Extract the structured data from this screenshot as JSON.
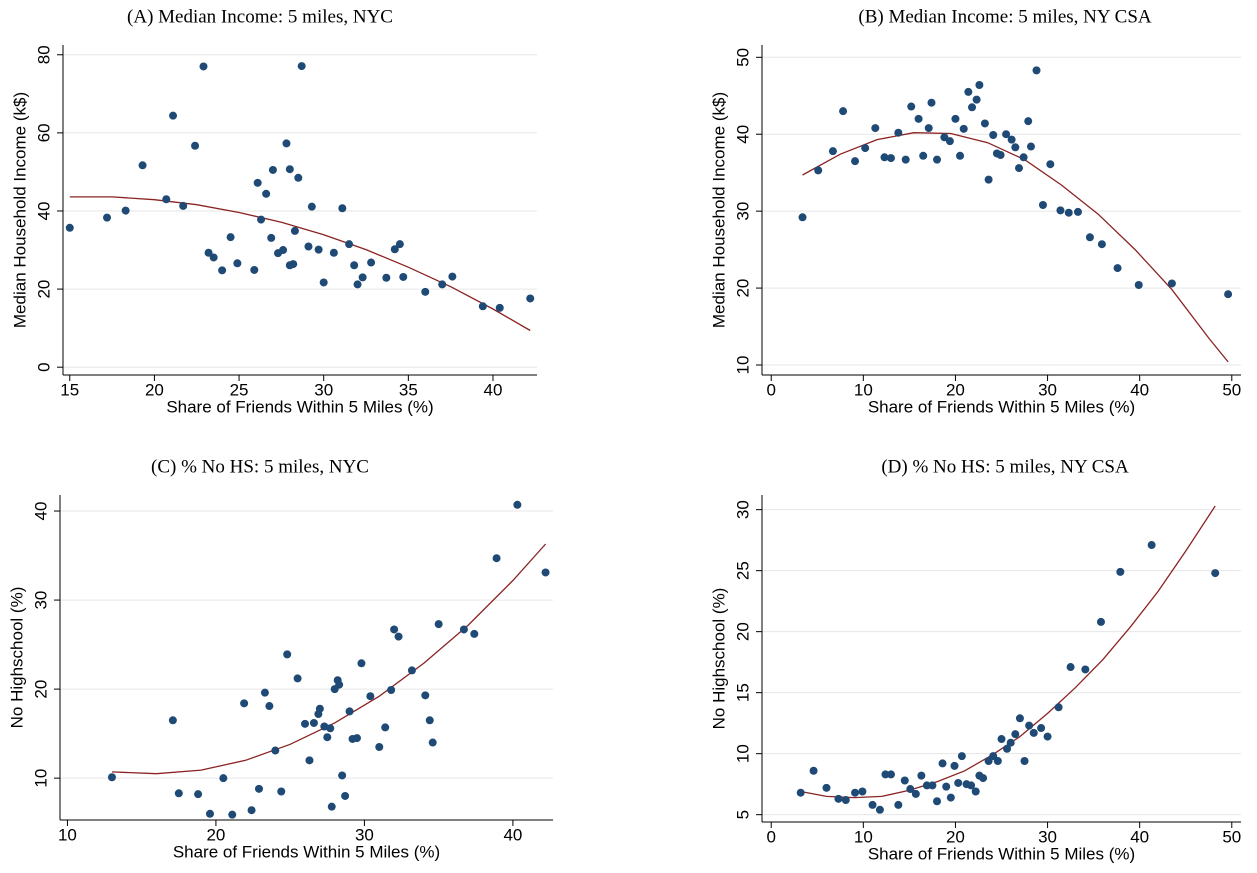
{
  "chart_data": [
    {
      "type": "scatter",
      "title": "(A)  Median Income: 5 miles, NYC",
      "xlabel": "Share of Friends Within 5 Miles (%)",
      "ylabel": "Median Household Income (k$)",
      "xlim": [
        14.6,
        42.6
      ],
      "ylim": [
        -2,
        82.5
      ],
      "xticks": [
        15,
        20,
        25,
        30,
        35,
        40
      ],
      "yticks": [
        0,
        20,
        40,
        60,
        80
      ],
      "grid": true,
      "color": "#1f4a75",
      "x": [
        15.0,
        17.2,
        18.3,
        19.3,
        20.7,
        21.1,
        21.7,
        22.4,
        22.9,
        23.2,
        23.5,
        24.0,
        24.5,
        24.9,
        25.9,
        26.1,
        26.3,
        26.6,
        26.9,
        27.0,
        27.3,
        27.6,
        27.8,
        28.0,
        28.0,
        28.2,
        28.3,
        28.5,
        28.7,
        29.1,
        29.3,
        29.7,
        30.0,
        30.6,
        31.1,
        31.5,
        31.8,
        32.0,
        32.3,
        32.8,
        33.7,
        34.2,
        34.5,
        34.7,
        36.0,
        37.0,
        37.6,
        39.4,
        40.4,
        42.2
      ],
      "values": [
        35.7,
        38.3,
        40.1,
        51.7,
        43.0,
        64.4,
        41.3,
        56.7,
        77.0,
        29.3,
        28.1,
        24.8,
        33.3,
        26.6,
        24.9,
        47.2,
        37.8,
        44.4,
        33.1,
        50.5,
        29.2,
        30.0,
        57.3,
        50.7,
        26.1,
        26.4,
        34.9,
        48.5,
        77.1,
        30.9,
        41.1,
        30.1,
        21.7,
        29.3,
        40.7,
        31.5,
        26.1,
        21.2,
        23.0,
        26.8,
        22.9,
        30.2,
        31.5,
        23.1,
        19.3,
        21.2,
        23.2,
        15.6,
        15.2,
        17.6
      ],
      "fit": {
        "color": "#8b2323",
        "x": [
          15,
          17.5,
          20,
          22.5,
          25,
          27.5,
          30,
          32.5,
          35,
          37.5,
          40,
          42.2
        ],
        "values": [
          43.6,
          43.6,
          42.9,
          41.6,
          39.6,
          37.1,
          33.9,
          30.1,
          25.6,
          20.6,
          14.9,
          9.4
        ]
      }
    },
    {
      "type": "scatter",
      "title": "(B)  Median Income: 5 miles, NY CSA",
      "xlabel": "Share of Friends Within 5 Miles (%)",
      "ylabel": "Median Household Income (k$)",
      "xlim": [
        -1,
        51
      ],
      "ylim": [
        8.7,
        51.6
      ],
      "xticks": [
        0,
        10,
        20,
        30,
        40,
        50
      ],
      "yticks": [
        10,
        20,
        30,
        40,
        50
      ],
      "grid": true,
      "color": "#1f4a75",
      "x": [
        3.4,
        5.1,
        6.7,
        7.8,
        9.1,
        10.2,
        11.3,
        12.3,
        13.0,
        13.8,
        14.6,
        15.2,
        16.0,
        16.5,
        17.1,
        17.4,
        18.0,
        18.8,
        19.4,
        20.0,
        20.5,
        20.9,
        21.4,
        21.8,
        22.3,
        22.6,
        23.2,
        23.6,
        24.1,
        24.5,
        24.9,
        25.5,
        26.1,
        26.5,
        26.9,
        27.4,
        27.9,
        28.2,
        28.8,
        29.5,
        30.3,
        31.4,
        32.3,
        33.3,
        34.6,
        35.9,
        37.6,
        39.9,
        43.5,
        49.6
      ],
      "values": [
        29.2,
        35.3,
        37.8,
        43.0,
        36.5,
        38.2,
        40.8,
        37.0,
        36.9,
        40.2,
        36.7,
        43.6,
        42.0,
        37.2,
        40.8,
        44.1,
        36.7,
        39.6,
        39.1,
        42.0,
        37.2,
        40.7,
        45.5,
        43.5,
        44.5,
        46.4,
        41.4,
        34.1,
        39.9,
        37.5,
        37.3,
        40.0,
        39.3,
        38.3,
        35.6,
        37.0,
        41.7,
        38.4,
        48.3,
        30.8,
        36.1,
        30.1,
        29.8,
        29.9,
        26.6,
        25.7,
        22.6,
        20.4,
        20.6,
        19.2
      ],
      "fit": {
        "color": "#8b2323",
        "x": [
          3.4,
          7.5,
          11.5,
          15.5,
          19.5,
          23.5,
          27.5,
          31.5,
          35.5,
          39.5,
          43.5,
          47.5,
          49.6
        ],
        "values": [
          34.7,
          37.4,
          39.3,
          40.2,
          40.1,
          38.9,
          36.7,
          33.4,
          29.6,
          25.0,
          19.8,
          13.5,
          10.4
        ]
      }
    },
    {
      "type": "scatter",
      "title": "(C)  % No HS: 5 miles, NYC",
      "xlabel": "Share of Friends Within 5 Miles (%)",
      "ylabel": "No Highschool (%)",
      "xlim": [
        9.5,
        42.7
      ],
      "ylim": [
        5.3,
        41.8
      ],
      "xticks": [
        10,
        20,
        30,
        40
      ],
      "yticks": [
        10,
        20,
        30,
        40
      ],
      "grid": true,
      "color": "#1f4a75",
      "x": [
        13.0,
        17.1,
        17.5,
        18.8,
        19.6,
        20.5,
        21.1,
        21.9,
        22.4,
        22.9,
        23.3,
        23.6,
        24.0,
        24.4,
        24.8,
        25.5,
        26.0,
        26.3,
        26.6,
        26.9,
        27.0,
        27.3,
        27.5,
        27.7,
        27.8,
        28.0,
        28.2,
        28.3,
        28.5,
        28.7,
        29.0,
        29.2,
        29.5,
        29.8,
        30.4,
        31.0,
        31.4,
        31.8,
        32.0,
        32.3,
        33.2,
        34.1,
        34.4,
        34.6,
        35.0,
        36.7,
        37.4,
        38.9,
        40.3,
        42.2
      ],
      "values": [
        10.1,
        16.5,
        8.3,
        8.2,
        6.0,
        10.0,
        5.9,
        18.4,
        6.4,
        8.8,
        19.6,
        18.1,
        13.1,
        8.5,
        23.9,
        21.2,
        16.1,
        12.0,
        16.2,
        17.2,
        17.8,
        15.8,
        14.6,
        15.6,
        6.8,
        20.0,
        21.0,
        20.5,
        10.3,
        8.0,
        17.5,
        14.4,
        14.5,
        22.9,
        19.2,
        13.5,
        15.7,
        19.9,
        26.7,
        25.9,
        22.1,
        19.3,
        16.5,
        14.0,
        27.3,
        26.7,
        26.2,
        34.7,
        40.7,
        33.1
      ],
      "fit": {
        "color": "#8b2323",
        "x": [
          13,
          16,
          19,
          22,
          25,
          28,
          31,
          34,
          37,
          40,
          42.2
        ],
        "values": [
          10.7,
          10.5,
          10.9,
          12.0,
          13.8,
          16.2,
          19.2,
          22.9,
          27.2,
          32.2,
          36.3
        ]
      }
    },
    {
      "type": "scatter",
      "title": "(D)  % No HS: 5 miles, NY CSA",
      "xlabel": "Share of Friends Within 5 Miles (%)",
      "ylabel": "No Highschool (%)",
      "xlim": [
        -1,
        51
      ],
      "ylim": [
        4.4,
        31.2
      ],
      "xticks": [
        0,
        10,
        20,
        30,
        40,
        50
      ],
      "yticks": [
        5,
        10,
        15,
        20,
        25,
        30
      ],
      "grid": true,
      "color": "#1f4a75",
      "x": [
        3.2,
        4.6,
        6.0,
        7.3,
        8.1,
        9.1,
        9.9,
        11.0,
        11.8,
        12.4,
        13.0,
        13.8,
        14.5,
        15.1,
        15.7,
        16.3,
        16.9,
        17.5,
        18.0,
        18.6,
        19.0,
        19.5,
        19.9,
        20.3,
        20.7,
        21.2,
        21.7,
        22.2,
        22.6,
        23.0,
        23.6,
        24.1,
        24.6,
        25.0,
        25.6,
        26.0,
        26.5,
        27.0,
        27.5,
        28.0,
        28.5,
        29.3,
        30.0,
        31.2,
        32.5,
        34.1,
        35.8,
        37.9,
        41.3,
        48.2
      ],
      "values": [
        6.8,
        8.6,
        7.2,
        6.3,
        6.2,
        6.8,
        6.9,
        5.8,
        5.4,
        8.3,
        8.3,
        5.8,
        7.8,
        7.1,
        6.7,
        8.2,
        7.4,
        7.4,
        6.1,
        9.2,
        7.3,
        6.4,
        9.0,
        7.6,
        9.8,
        7.5,
        7.4,
        6.9,
        8.2,
        8.0,
        9.4,
        9.8,
        9.4,
        11.2,
        10.4,
        10.9,
        11.6,
        12.9,
        9.4,
        12.3,
        11.7,
        12.1,
        11.4,
        13.8,
        17.1,
        16.9,
        20.8,
        24.9,
        27.1,
        24.8
      ],
      "fit": {
        "color": "#8b2323",
        "x": [
          3.2,
          6,
          9,
          12,
          15,
          18,
          21,
          24,
          27,
          30,
          33,
          36,
          39,
          42,
          45,
          48.2
        ],
        "values": [
          6.9,
          6.5,
          6.4,
          6.5,
          7.0,
          7.7,
          8.6,
          9.9,
          11.4,
          13.3,
          15.4,
          17.7,
          20.4,
          23.3,
          26.6,
          30.3
        ]
      }
    }
  ]
}
